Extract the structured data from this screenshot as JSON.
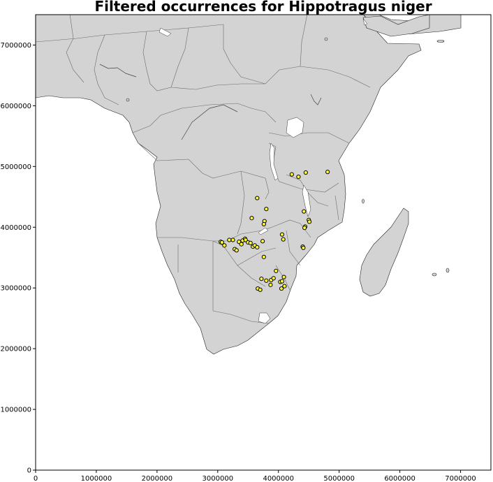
{
  "chart_data": {
    "type": "scatter",
    "title": "Filtered occurrences for Hippotragus niger",
    "xlabel": "",
    "ylabel": "",
    "xlim": [
      0,
      7500000
    ],
    "ylim": [
      0,
      7500000
    ],
    "x_ticks": [
      0,
      1000000,
      2000000,
      3000000,
      4000000,
      5000000,
      6000000,
      7000000
    ],
    "y_ticks": [
      0,
      1000000,
      2000000,
      3000000,
      4000000,
      5000000,
      6000000,
      7000000
    ],
    "x_tick_labels": [
      "0",
      "1000000",
      "2000000",
      "3000000",
      "4000000",
      "5000000",
      "6000000",
      "7000000"
    ],
    "y_tick_labels": [
      "0",
      "1000000",
      "2000000",
      "3000000",
      "4000000",
      "5000000",
      "6000000",
      "7000000"
    ],
    "grid": false,
    "basemap": "Africa country outlines",
    "colors": {
      "marker_fill": "#ffff33",
      "marker_edge": "#000000",
      "land": "#d3d3d3",
      "water": "#ffffff"
    },
    "series": [
      {
        "x": [
          4220000,
          4330000,
          4450000,
          4810000,
          3650000,
          3800000,
          3560000,
          3770000,
          3760000,
          4420000,
          4500000,
          4510000,
          4440000,
          4430000,
          3050000,
          3070000,
          3110000,
          3190000,
          3250000,
          3280000,
          3310000,
          3350000,
          3390000,
          3410000,
          3450000,
          3460000,
          3500000,
          3540000,
          3580000,
          3610000,
          3650000,
          3740000,
          4060000,
          4080000,
          4400000,
          4410000,
          3760000,
          3960000,
          3720000,
          3800000,
          3880000,
          3920000,
          4030000,
          4060000,
          4090000,
          4100000,
          4050000,
          3870000,
          3660000,
          3700000
        ],
        "y": [
          4870000,
          4830000,
          4900000,
          4910000,
          4480000,
          4300000,
          4150000,
          4100000,
          4050000,
          4260000,
          4120000,
          4090000,
          4010000,
          3990000,
          3760000,
          3750000,
          3700000,
          3790000,
          3790000,
          3640000,
          3620000,
          3760000,
          3720000,
          3780000,
          3810000,
          3790000,
          3750000,
          3740000,
          3680000,
          3700000,
          3670000,
          3770000,
          3880000,
          3800000,
          3680000,
          3660000,
          3510000,
          3280000,
          3150000,
          3120000,
          3130000,
          3160000,
          3100000,
          3110000,
          3180000,
          3030000,
          2990000,
          3050000,
          2990000,
          2970000
        ]
      }
    ]
  }
}
